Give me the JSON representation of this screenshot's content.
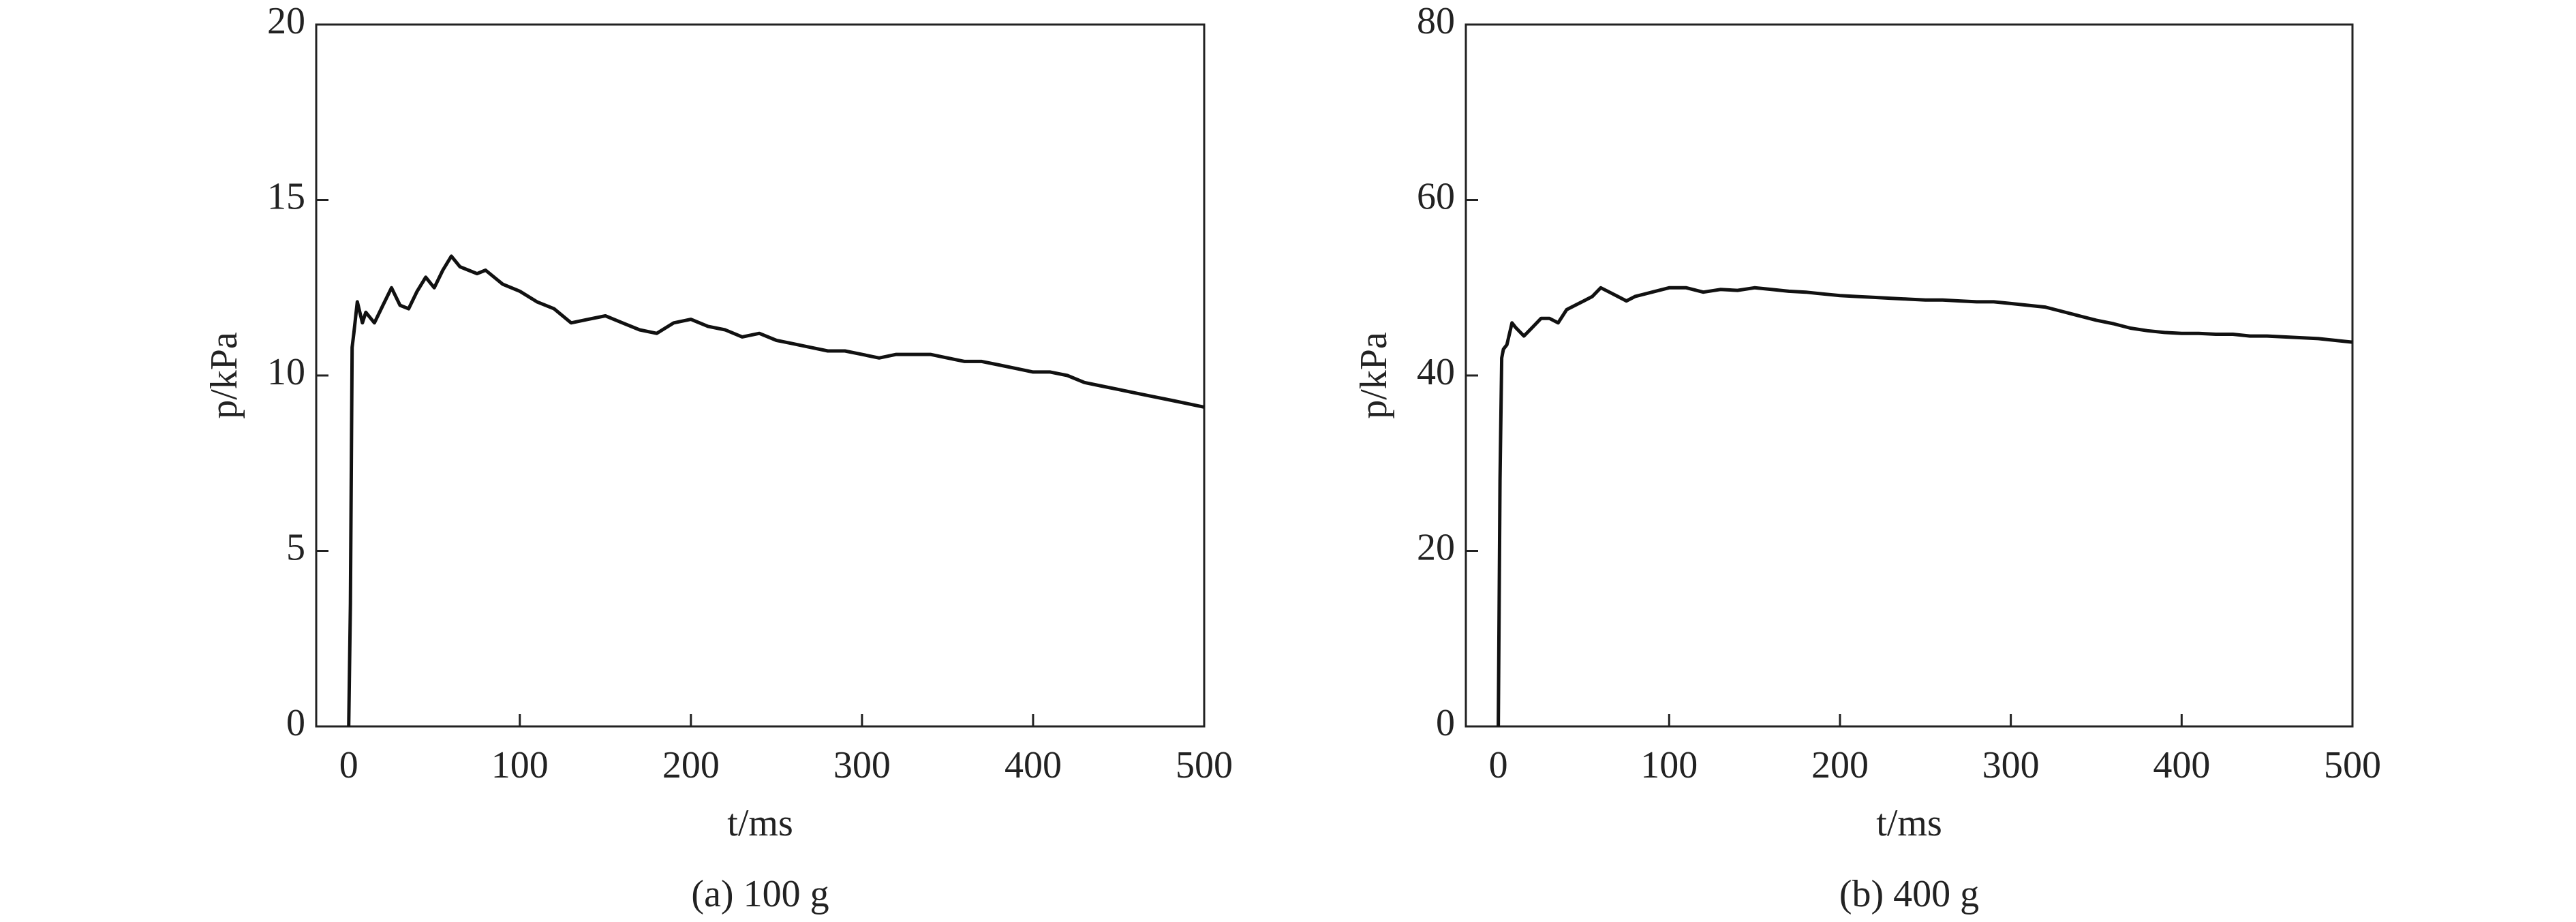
{
  "chart_data": [
    {
      "type": "line",
      "caption": "(a) 100 g",
      "x_label": "t/ms",
      "y_label": "p/kPa",
      "x": [
        0,
        1,
        2,
        3,
        5,
        8,
        10,
        15,
        20,
        25,
        30,
        35,
        40,
        45,
        50,
        55,
        60,
        65,
        70,
        75,
        80,
        90,
        100,
        110,
        120,
        130,
        140,
        150,
        160,
        170,
        180,
        190,
        200,
        210,
        220,
        230,
        240,
        250,
        260,
        270,
        280,
        290,
        300,
        310,
        320,
        330,
        340,
        350,
        360,
        370,
        380,
        390,
        400,
        410,
        420,
        430,
        440,
        450,
        460,
        470,
        480,
        490,
        500
      ],
      "series": [
        {
          "color": "#111111",
          "values": [
            0,
            3.5,
            10.8,
            11.2,
            12.1,
            11.5,
            11.8,
            11.5,
            12.0,
            12.5,
            12.0,
            11.9,
            12.4,
            12.8,
            12.5,
            13.0,
            13.4,
            13.1,
            13.0,
            12.9,
            13.0,
            12.6,
            12.4,
            12.1,
            11.9,
            11.5,
            11.6,
            11.7,
            11.5,
            11.3,
            11.2,
            11.5,
            11.6,
            11.4,
            11.3,
            11.1,
            11.2,
            11.0,
            10.9,
            10.8,
            10.7,
            10.7,
            10.6,
            10.5,
            10.6,
            10.6,
            10.6,
            10.5,
            10.4,
            10.4,
            10.3,
            10.2,
            10.1,
            10.1,
            10.0,
            9.8,
            9.7,
            9.6,
            9.5,
            9.4,
            9.3,
            9.2,
            9.1
          ]
        }
      ],
      "xlim": [
        -19,
        500
      ],
      "xticks": [
        0,
        100,
        200,
        300,
        400,
        500
      ],
      "ylim": [
        0,
        20
      ],
      "yticks": [
        0,
        5,
        10,
        15,
        20
      ]
    },
    {
      "type": "line",
      "caption": "(b) 400 g",
      "x_label": "t/ms",
      "y_label": "p/kPa",
      "x": [
        0,
        1,
        2,
        3,
        5,
        8,
        10,
        15,
        20,
        25,
        30,
        35,
        40,
        45,
        50,
        55,
        60,
        65,
        70,
        75,
        80,
        90,
        100,
        110,
        120,
        130,
        140,
        150,
        160,
        170,
        180,
        190,
        200,
        210,
        220,
        230,
        240,
        250,
        260,
        270,
        280,
        290,
        300,
        310,
        320,
        330,
        340,
        350,
        360,
        370,
        380,
        390,
        400,
        410,
        420,
        430,
        440,
        450,
        460,
        470,
        480,
        490,
        500
      ],
      "series": [
        {
          "color": "#111111",
          "values": [
            0,
            28,
            42,
            43,
            43.5,
            46,
            45.5,
            44.5,
            45.5,
            46.5,
            46.5,
            46,
            47.5,
            48,
            48.5,
            49,
            50,
            49.5,
            49,
            48.5,
            49,
            49.5,
            50,
            50,
            49.5,
            49.8,
            49.7,
            50,
            49.8,
            49.6,
            49.5,
            49.3,
            49.1,
            49,
            48.9,
            48.8,
            48.7,
            48.6,
            48.6,
            48.5,
            48.4,
            48.4,
            48.2,
            48,
            47.8,
            47.3,
            46.8,
            46.3,
            45.9,
            45.4,
            45.1,
            44.9,
            44.8,
            44.8,
            44.7,
            44.7,
            44.5,
            44.5,
            44.4,
            44.3,
            44.2,
            44,
            43.8
          ]
        }
      ],
      "xlim": [
        -19,
        500
      ],
      "xticks": [
        0,
        100,
        200,
        300,
        400,
        500
      ],
      "ylim": [
        0,
        80
      ],
      "yticks": [
        0,
        20,
        40,
        60,
        80
      ]
    }
  ]
}
